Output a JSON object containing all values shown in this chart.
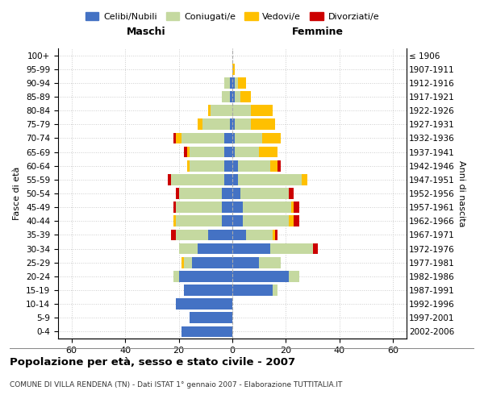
{
  "age_groups": [
    "0-4",
    "5-9",
    "10-14",
    "15-19",
    "20-24",
    "25-29",
    "30-34",
    "35-39",
    "40-44",
    "45-49",
    "50-54",
    "55-59",
    "60-64",
    "65-69",
    "70-74",
    "75-79",
    "80-84",
    "85-89",
    "90-94",
    "95-99",
    "100+"
  ],
  "birth_years": [
    "2002-2006",
    "1997-2001",
    "1992-1996",
    "1987-1991",
    "1982-1986",
    "1977-1981",
    "1972-1976",
    "1967-1971",
    "1962-1966",
    "1957-1961",
    "1952-1956",
    "1947-1951",
    "1942-1946",
    "1937-1941",
    "1932-1936",
    "1927-1931",
    "1922-1926",
    "1917-1921",
    "1912-1916",
    "1907-1911",
    "≤ 1906"
  ],
  "males": {
    "celibi": [
      19,
      16,
      21,
      18,
      20,
      15,
      13,
      9,
      4,
      4,
      4,
      3,
      3,
      3,
      3,
      1,
      0,
      1,
      1,
      0,
      0
    ],
    "coniugati": [
      0,
      0,
      0,
      0,
      2,
      3,
      7,
      12,
      17,
      17,
      16,
      20,
      13,
      13,
      16,
      10,
      8,
      3,
      2,
      0,
      0
    ],
    "vedovi": [
      0,
      0,
      0,
      0,
      0,
      1,
      0,
      0,
      1,
      0,
      0,
      0,
      1,
      1,
      2,
      2,
      1,
      0,
      0,
      0,
      0
    ],
    "divorziati": [
      0,
      0,
      0,
      0,
      0,
      0,
      0,
      2,
      0,
      1,
      1,
      1,
      0,
      1,
      1,
      0,
      0,
      0,
      0,
      0,
      0
    ]
  },
  "females": {
    "nubili": [
      0,
      0,
      0,
      15,
      21,
      10,
      14,
      5,
      4,
      4,
      3,
      2,
      2,
      1,
      1,
      1,
      0,
      1,
      1,
      0,
      0
    ],
    "coniugate": [
      0,
      0,
      0,
      2,
      4,
      8,
      16,
      10,
      17,
      18,
      18,
      24,
      12,
      9,
      10,
      6,
      7,
      2,
      1,
      0,
      0
    ],
    "vedove": [
      0,
      0,
      0,
      0,
      0,
      0,
      0,
      1,
      2,
      1,
      0,
      2,
      3,
      7,
      7,
      9,
      8,
      4,
      3,
      1,
      0
    ],
    "divorziate": [
      0,
      0,
      0,
      0,
      0,
      0,
      2,
      1,
      2,
      2,
      2,
      0,
      1,
      0,
      0,
      0,
      0,
      0,
      0,
      0,
      0
    ]
  },
  "color_celibi": "#4472c4",
  "color_coniugati": "#c5d9a0",
  "color_vedovi": "#ffc000",
  "color_divorziati": "#cc0000",
  "title": "Popolazione per età, sesso e stato civile - 2007",
  "subtitle": "COMUNE DI VILLA RENDENA (TN) - Dati ISTAT 1° gennaio 2007 - Elaborazione TUTTITALIA.IT",
  "xlabel_left": "Maschi",
  "xlabel_right": "Femmine",
  "ylabel_left": "Fasce di età",
  "ylabel_right": "Anni di nascita",
  "xlim": 65,
  "bg_color": "#ffffff",
  "grid_color": "#cccccc"
}
